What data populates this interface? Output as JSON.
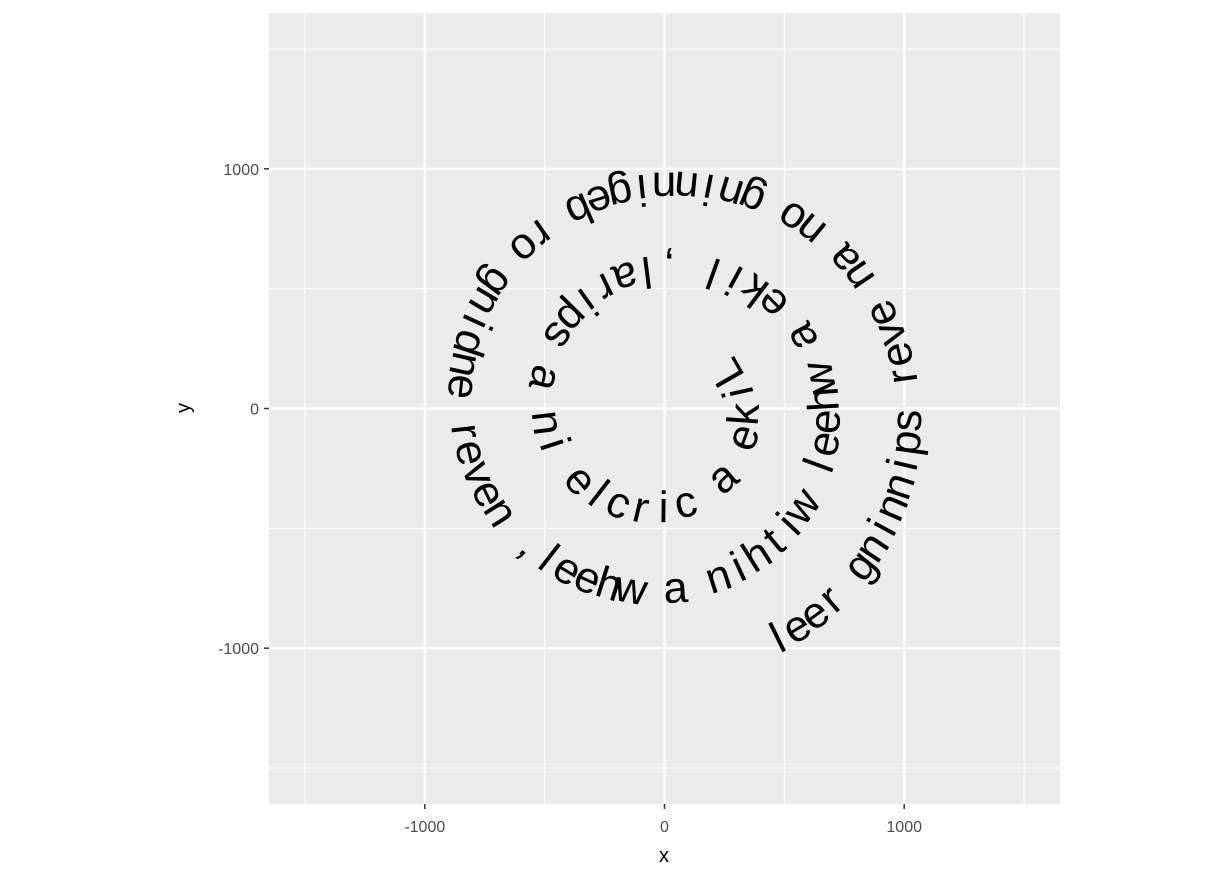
{
  "chart_data": {
    "type": "scatter",
    "title": "",
    "xlabel": "x",
    "ylabel": "y",
    "xlim": [
      -1650,
      1650
    ],
    "ylim": [
      -1650,
      1650
    ],
    "x_ticks": [
      -1000,
      0,
      1000
    ],
    "y_ticks": [
      -1000,
      0,
      1000
    ],
    "x_tick_labels": [
      "-1000",
      "0",
      "1000"
    ],
    "y_tick_labels": [
      "-1000",
      "0",
      "1000"
    ],
    "x_minor_ticks": [
      -1500,
      -500,
      500,
      1500
    ],
    "y_minor_ticks": [
      -1500,
      -500,
      500,
      1500
    ],
    "grid": true,
    "panel_color": "#ebebeb",
    "grid_color": "#ffffff",
    "text_label": "Like a circle in a spiral, like a wheel within a wheel, never ending or beginning on an ever spinning reel",
    "spiral": {
      "start_angle_deg": 30,
      "start_radius": 300,
      "radius_growth_per_turn": 340,
      "letter_spacing_data": 92
    }
  }
}
